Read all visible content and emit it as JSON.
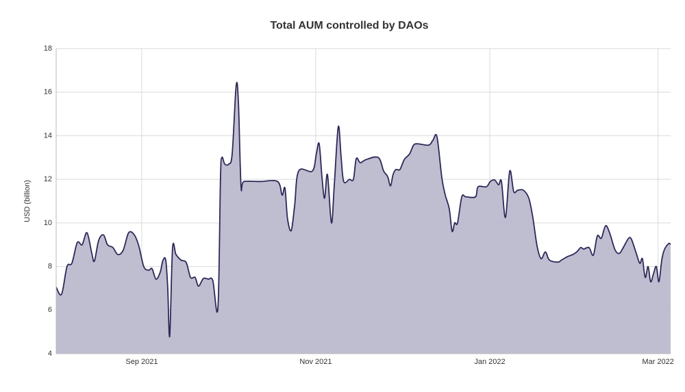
{
  "chart_data": {
    "type": "area",
    "title": "Total AUM controlled by DAOs",
    "y_label": "USD (billion)",
    "color": "#2b2857",
    "fill": "#bcb9cd",
    "grid": true,
    "xlim": [
      -30,
      185.4
    ],
    "xticks": [
      {
        "value": 0,
        "label": "Sep 2021"
      },
      {
        "value": 61,
        "label": "Nov 2021"
      },
      {
        "value": 122,
        "label": "Jan 2022"
      },
      {
        "value": 181,
        "label": "Mar 2022"
      }
    ],
    "ylim": [
      4,
      18
    ],
    "yticks": [
      4,
      6,
      8,
      10,
      12,
      14,
      16,
      18
    ],
    "x": [
      -30.0,
      -28.1,
      -26.2,
      -24.5,
      -22.6,
      -20.9,
      -19.2,
      -17.5,
      -16.6,
      -15.1,
      -13.4,
      -12.0,
      -10.1,
      -8.4,
      -6.5,
      -4.6,
      -2.6,
      -1.0,
      0.7,
      2.4,
      3.6,
      5.0,
      6.5,
      7.4,
      8.4,
      9.1,
      9.8,
      10.8,
      12.0,
      13.7,
      15.6,
      17.1,
      18.7,
      19.9,
      21.6,
      23.3,
      24.9,
      26.7,
      27.6,
      28.1,
      29.1,
      30.5,
      31.7,
      33.1,
      33.9,
      34.8,
      35.8,
      41.5,
      47.6,
      49.2,
      50.2,
      51.1,
      52.4,
      53.6,
      55.0,
      59.8,
      61.2,
      62.2,
      63.2,
      64.1,
      65.1,
      66.5,
      67.5,
      68.9,
      69.9,
      70.8,
      72.8,
      74.2,
      75.2,
      76.6,
      78.5,
      82.9,
      84.8,
      86.2,
      87.2,
      88.1,
      89.1,
      90.5,
      92.0,
      93.9,
      95.3,
      96.8,
      100.6,
      102.1,
      103.5,
      105.2,
      106.4,
      107.8,
      108.8,
      109.7,
      110.7,
      112.2,
      113.6,
      117.0,
      117.9,
      120.8,
      122.2,
      123.7,
      125.1,
      126.1,
      127.5,
      129.0,
      130.4,
      131.8,
      133.8,
      135.7,
      137.1,
      138.6,
      140.0,
      141.5,
      142.9,
      145.8,
      147.2,
      149.2,
      151.1,
      152.5,
      153.9,
      154.9,
      156.8,
      158.3,
      159.7,
      161.1,
      162.6,
      164.0,
      165.9,
      167.4,
      168.8,
      170.7,
      171.7,
      173.2,
      174.6,
      175.5,
      176.5,
      177.5,
      178.4,
      179.4,
      180.4,
      181.3,
      182.3,
      183.2,
      184.7,
      185.4
    ],
    "values": [
      7.05,
      6.73,
      8.0,
      8.15,
      9.1,
      9.0,
      9.55,
      8.6,
      8.25,
      9.2,
      9.45,
      9.0,
      8.87,
      8.55,
      8.75,
      9.55,
      9.45,
      8.93,
      8.0,
      7.83,
      7.9,
      7.42,
      7.75,
      8.27,
      8.3,
      7.05,
      4.8,
      8.83,
      8.55,
      8.3,
      8.18,
      7.5,
      7.5,
      7.1,
      7.45,
      7.42,
      7.36,
      6.1,
      12.06,
      13.0,
      12.7,
      12.7,
      13.17,
      16.3,
      15.5,
      11.7,
      11.9,
      11.9,
      11.9,
      11.28,
      11.6,
      10.2,
      9.65,
      10.8,
      12.38,
      12.38,
      13.17,
      13.63,
      12.07,
      11.13,
      12.22,
      10.0,
      11.75,
      14.42,
      13.0,
      11.9,
      12.0,
      12.0,
      12.95,
      12.76,
      12.9,
      13.0,
      12.38,
      12.13,
      11.7,
      12.22,
      12.45,
      12.45,
      12.9,
      13.17,
      13.57,
      13.63,
      13.57,
      13.8,
      13.95,
      12.07,
      11.28,
      10.65,
      9.62,
      10.0,
      10.0,
      11.2,
      11.2,
      11.2,
      11.66,
      11.66,
      11.9,
      11.97,
      11.75,
      11.9,
      10.25,
      12.38,
      11.44,
      11.5,
      11.5,
      11.13,
      10.25,
      8.93,
      8.36,
      8.67,
      8.3,
      8.2,
      8.3,
      8.45,
      8.55,
      8.67,
      8.87,
      8.8,
      8.87,
      8.52,
      9.4,
      9.3,
      9.87,
      9.55,
      8.77,
      8.6,
      8.87,
      9.3,
      9.24,
      8.67,
      8.15,
      8.36,
      7.5,
      8.0,
      7.3,
      7.67,
      8.0,
      7.3,
      8.3,
      8.77,
      9.05,
      9.02
    ]
  }
}
